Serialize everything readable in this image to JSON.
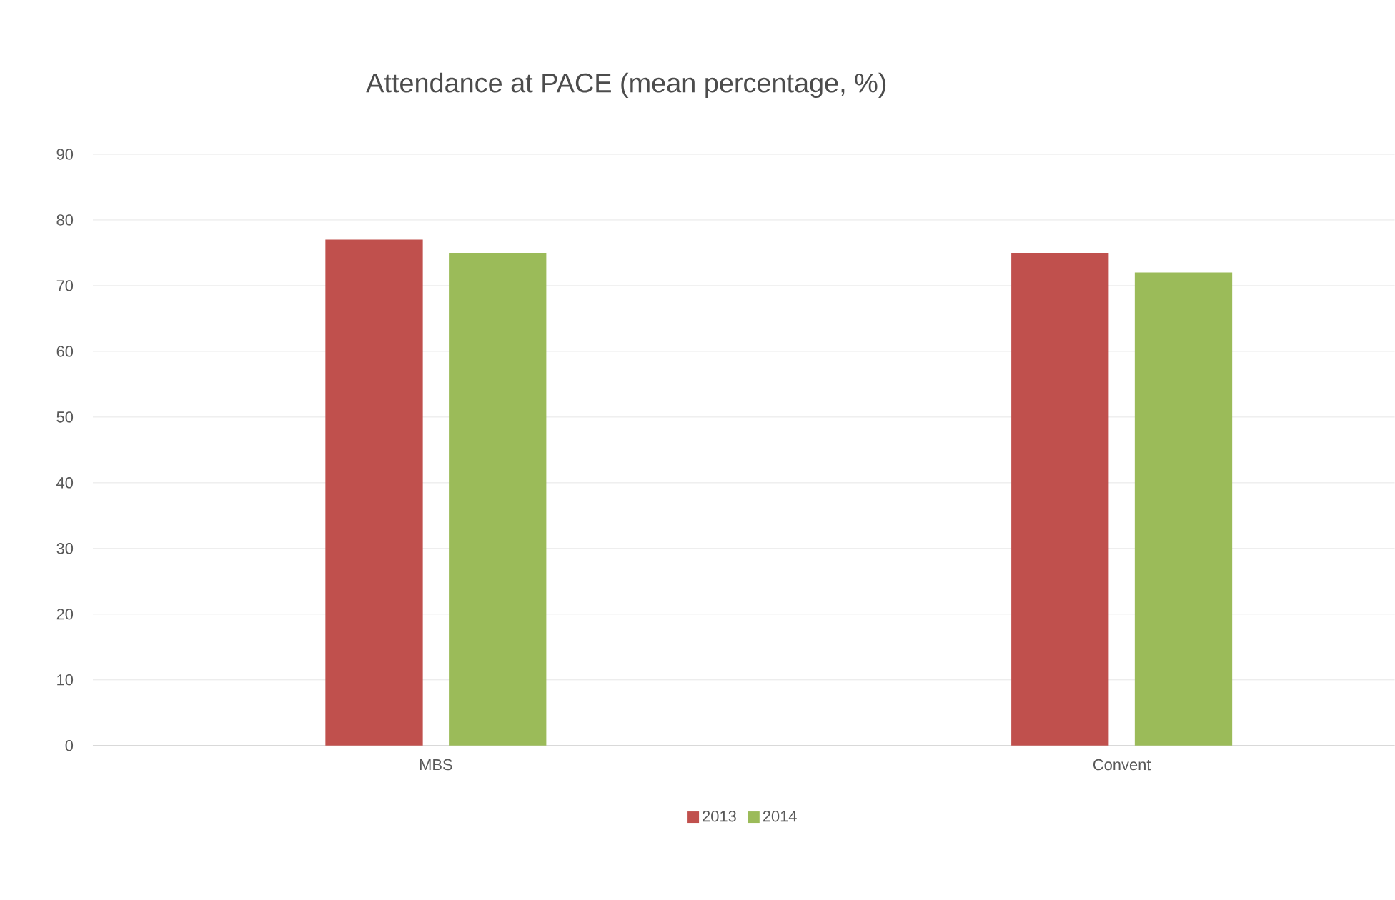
{
  "chart_data": {
    "type": "bar",
    "title": "Attendance at PACE (mean percentage, %)",
    "categories": [
      "MBS",
      "Convent"
    ],
    "series": [
      {
        "name": "2013",
        "color": "#c0504d",
        "values": [
          77,
          75
        ]
      },
      {
        "name": "2014",
        "color": "#9bbb59",
        "values": [
          75,
          72
        ]
      }
    ],
    "ylim": [
      0,
      90
    ],
    "yticks": [
      0,
      10,
      20,
      30,
      40,
      50,
      60,
      70,
      80,
      90
    ],
    "grid": "y",
    "legend": "bottom"
  }
}
